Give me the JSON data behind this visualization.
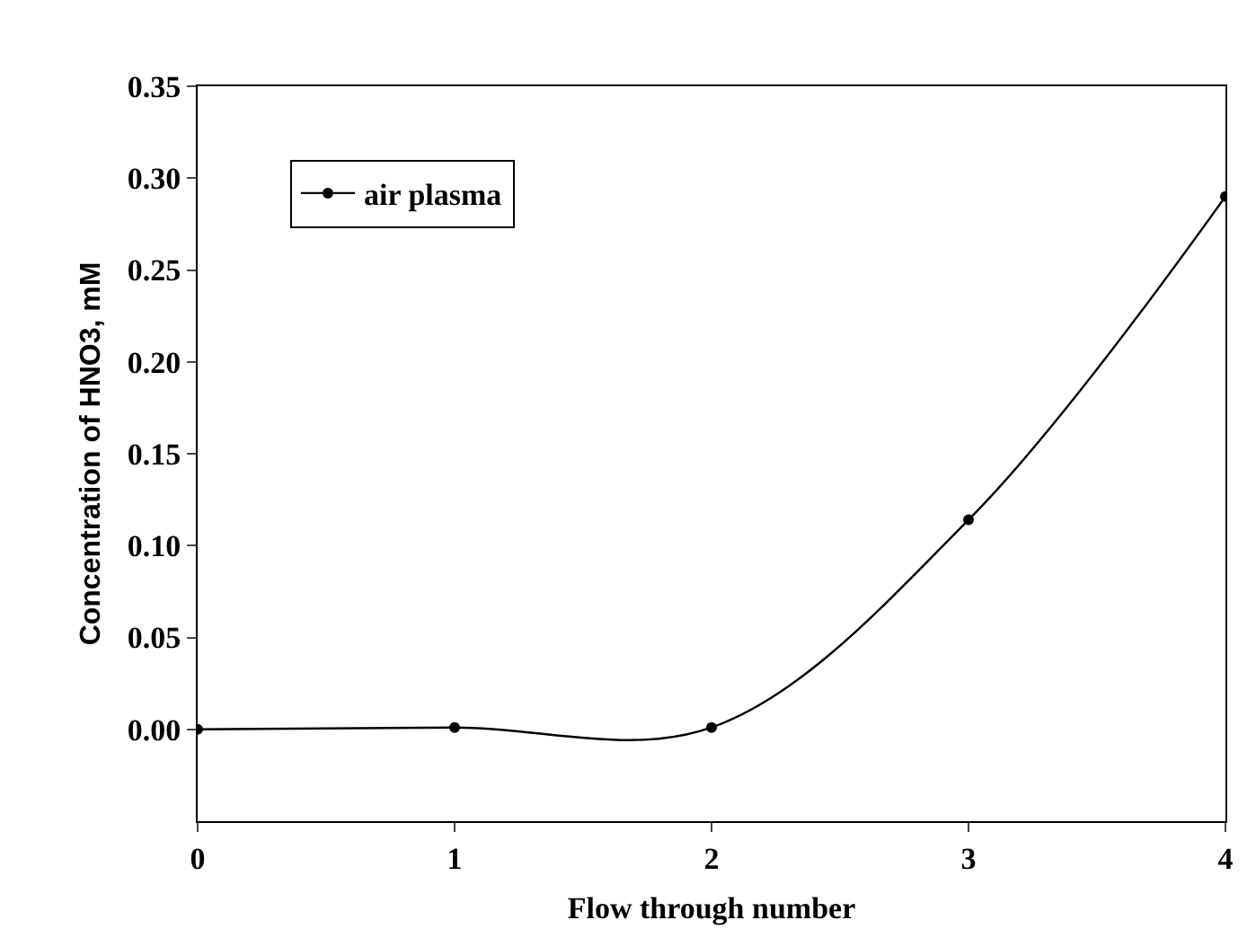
{
  "chart_data": {
    "type": "line",
    "xlabel": "Flow through number",
    "ylabel": "Concentration of HNO3, mM",
    "x": [
      0,
      1,
      2,
      3,
      4
    ],
    "series": [
      {
        "name": "air plasma",
        "color": "#000000",
        "values": [
          0.0,
          0.001,
          0.001,
          0.114,
          0.29
        ]
      }
    ],
    "xlim": [
      0,
      4
    ],
    "xticks": [
      0,
      1,
      2,
      3,
      4
    ],
    "ylim": [
      -0.05,
      0.35
    ],
    "yticks": [
      {
        "value": 0,
        "label": "0.00"
      },
      {
        "value": 0.05,
        "label": "0.05"
      },
      {
        "value": 0.1,
        "label": "0.10"
      },
      {
        "value": 0.15,
        "label": "0.15"
      },
      {
        "value": 0.2,
        "label": "0.20"
      },
      {
        "value": 0.25,
        "label": "0.25"
      },
      {
        "value": 0.3,
        "label": "0.30"
      },
      {
        "value": 0.35,
        "label": "0.35"
      }
    ],
    "grid": false,
    "legend": "top left",
    "marker": "circle",
    "line_style": "solid"
  }
}
